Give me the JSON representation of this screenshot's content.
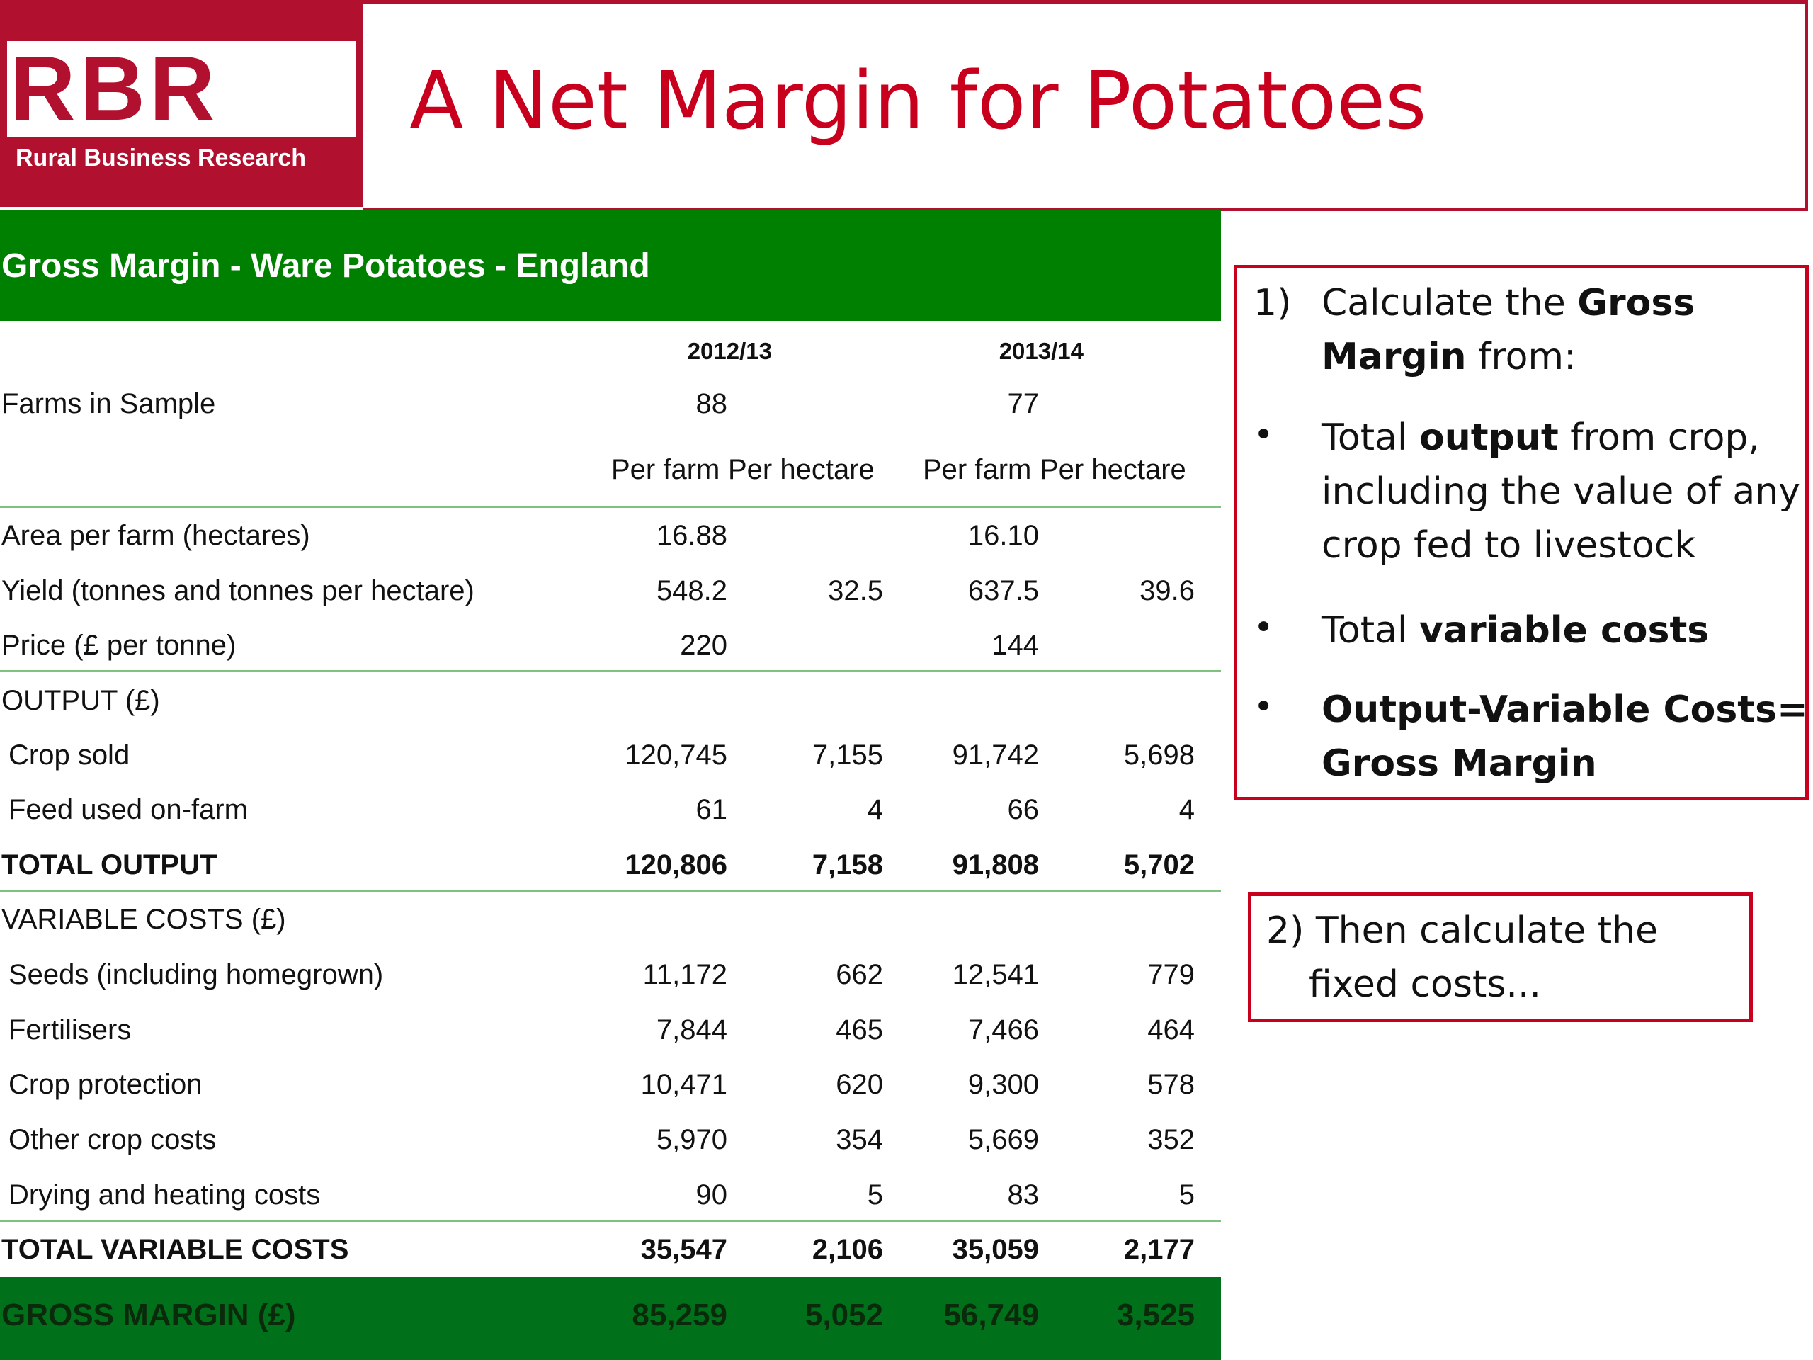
{
  "logo": {
    "letters": "RBR",
    "subtitle": "Rural Business Research"
  },
  "page_title": "A Net Margin for Potatoes",
  "table": {
    "title": "Gross Margin - Ware Potatoes - England",
    "years": [
      "2012/13",
      "2013/14"
    ],
    "farms_label": "Farms in Sample",
    "farms": [
      "88",
      "77"
    ],
    "per_farm_label": "Per farm",
    "per_hectare_label": "Per hectare",
    "rows": {
      "area": {
        "label": "Area per farm (hectares)",
        "v": [
          "16.88",
          "",
          "16.10",
          ""
        ]
      },
      "yield": {
        "label": "Yield (tonnes and tonnes per hectare)",
        "v": [
          "548.2",
          "32.5",
          "637.5",
          "39.6"
        ]
      },
      "price": {
        "label": "Price (£ per tonne)",
        "v": [
          "220",
          "",
          "144",
          ""
        ]
      },
      "output_header": {
        "label": "OUTPUT (£)"
      },
      "crop_sold": {
        "label": "Crop sold",
        "v": [
          "120,745",
          "7,155",
          "91,742",
          "5,698"
        ]
      },
      "feed": {
        "label": "Feed used on-farm",
        "v": [
          "61",
          "4",
          "66",
          "4"
        ]
      },
      "total_output": {
        "label": "TOTAL OUTPUT",
        "v": [
          "120,806",
          "7,158",
          "91,808",
          "5,702"
        ]
      },
      "vc_header": {
        "label": "VARIABLE COSTS (£)"
      },
      "seeds": {
        "label": "Seeds (including homegrown)",
        "v": [
          "11,172",
          "662",
          "12,541",
          "779"
        ]
      },
      "fertilisers": {
        "label": "Fertilisers",
        "v": [
          "7,844",
          "465",
          "7,466",
          "464"
        ]
      },
      "crop_protection": {
        "label": "Crop protection",
        "v": [
          "10,471",
          "620",
          "9,300",
          "578"
        ]
      },
      "other_crop": {
        "label": "Other crop costs",
        "v": [
          "5,970",
          "354",
          "5,669",
          "352"
        ]
      },
      "drying": {
        "label": "Drying and heating costs",
        "v": [
          "90",
          "5",
          "83",
          "5"
        ]
      },
      "total_vc": {
        "label": "TOTAL VARIABLE COSTS",
        "v": [
          "35,547",
          "2,106",
          "35,059",
          "2,177"
        ]
      },
      "gross_margin": {
        "label": "GROSS MARGIN (£)",
        "v": [
          "85,259",
          "5,052",
          "56,749",
          "3,525"
        ]
      }
    }
  },
  "note1": {
    "num": "1)",
    "l1a": "Calculate the ",
    "l1b": "Gross",
    "l2a": "Margin",
    "l2b": " from:",
    "b1a": "Total ",
    "b1b": "output",
    "b1c": " from crop,",
    "b1l2": "including the value of any",
    "b1l3": "crop fed to livestock",
    "b2a": "Total ",
    "b2b": "variable costs",
    "b3l1": "Output-Variable Costs=",
    "b3l2": "Gross Margin",
    "bullet": "•"
  },
  "note2": {
    "l1": "2) Then calculate the",
    "l2": "fixed costs..."
  },
  "colors": {
    "red": "#c8001e",
    "green": "#008000",
    "dark_green": "#00701a"
  }
}
